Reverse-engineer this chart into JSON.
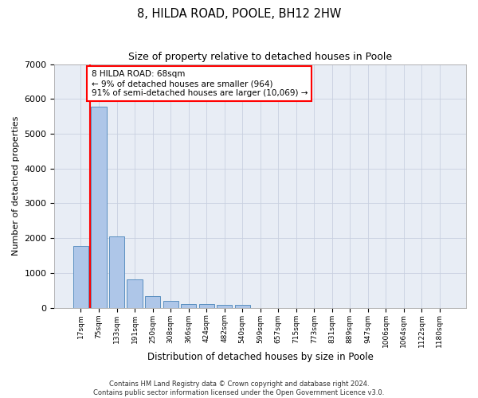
{
  "title": "8, HILDA ROAD, POOLE, BH12 2HW",
  "subtitle": "Size of property relative to detached houses in Poole",
  "xlabel": "Distribution of detached houses by size in Poole",
  "ylabel": "Number of detached properties",
  "bin_labels": [
    "17sqm",
    "75sqm",
    "133sqm",
    "191sqm",
    "250sqm",
    "308sqm",
    "366sqm",
    "424sqm",
    "482sqm",
    "540sqm",
    "599sqm",
    "657sqm",
    "715sqm",
    "773sqm",
    "831sqm",
    "889sqm",
    "947sqm",
    "1006sqm",
    "1064sqm",
    "1122sqm",
    "1180sqm"
  ],
  "bar_values": [
    1780,
    5780,
    2060,
    810,
    340,
    190,
    115,
    105,
    95,
    75,
    0,
    0,
    0,
    0,
    0,
    0,
    0,
    0,
    0,
    0,
    0
  ],
  "bar_color": "#aec6e8",
  "bar_edge_color": "#5a8fc0",
  "property_line_color": "red",
  "annotation_text": "8 HILDA ROAD: 68sqm\n← 9% of detached houses are smaller (964)\n91% of semi-detached houses are larger (10,069) →",
  "annotation_box_color": "white",
  "annotation_box_edge_color": "red",
  "ylim": [
    0,
    7000
  ],
  "yticks": [
    0,
    1000,
    2000,
    3000,
    4000,
    5000,
    6000,
    7000
  ],
  "grid_color": "#c8d0e0",
  "background_color": "#e8edf5",
  "footer_line1": "Contains HM Land Registry data © Crown copyright and database right 2024.",
  "footer_line2": "Contains public sector information licensed under the Open Government Licence v3.0."
}
